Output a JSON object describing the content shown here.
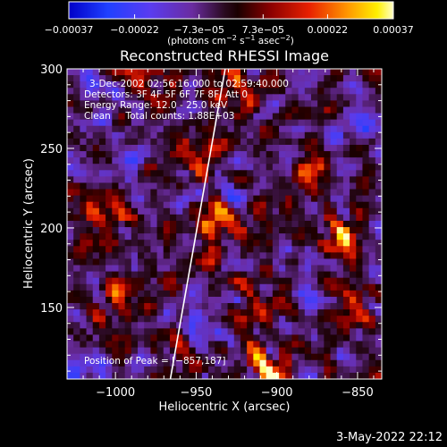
{
  "chart_data": {
    "type": "heatmap",
    "title": "Reconstructed RHESSI Image",
    "xlabel": "Heliocentric X (arcsec)",
    "ylabel": "Heliocentric Y (arcsec)",
    "xlim": [
      -1030,
      -835
    ],
    "ylim": [
      105,
      300
    ],
    "x_ticks": [
      -1000,
      -950,
      -900,
      -850
    ],
    "x_tick_labels": [
      "−1000",
      "−950",
      "−900",
      "−850"
    ],
    "y_ticks": [
      150,
      200,
      250,
      300
    ],
    "y_tick_labels": [
      "150",
      "200",
      "250",
      "300"
    ],
    "colorbar": {
      "range": [
        -0.00037,
        0.00037
      ],
      "ticks": [
        -0.00037,
        -0.00022,
        -7.3e-05,
        7.3e-05,
        0.00022,
        0.00037
      ],
      "tick_labels": [
        "−0.00037",
        "−0.00022",
        "−7.3e−05",
        "7.3e−05",
        "0.00022",
        "0.00037"
      ],
      "unit_main": "(photons cm",
      "unit_exp1": "−2",
      "unit_mid": " s",
      "unit_exp2": "−1",
      "unit_mid2": " asec",
      "unit_exp3": "−2",
      "unit_end": ")"
    },
    "info_lines": [
      "3-Dec-2002 02:56:16.000 to 02:59:40.000",
      "Detectors: 3F 4F 5F 6F 7F 8F, Att 0",
      "Energy Range: 12.0 - 25.0 keV",
      "Clean     Total counts: 1.88E+03"
    ],
    "peak_label": "Position of Peak = [−857,187]",
    "peak_position": [
      -857,
      187
    ],
    "limb_line": [
      [
        -966,
        105
      ],
      [
        -932,
        300
      ]
    ],
    "grid": false,
    "legend": "none",
    "pixel_size_arcsec": 4,
    "image_rows_description": "row 0 = top (y=300), col 0 = left (x=-1030); values scaled -1..1",
    "image_seed_pattern": "streaky multi-ridge emission, strongest near (-905,110) and (-860,195)"
  },
  "footer_date": "3-May-2022 22:12",
  "colors": {
    "background": "#000000",
    "text": "#ffffff",
    "limb_line": "#ffffff"
  }
}
